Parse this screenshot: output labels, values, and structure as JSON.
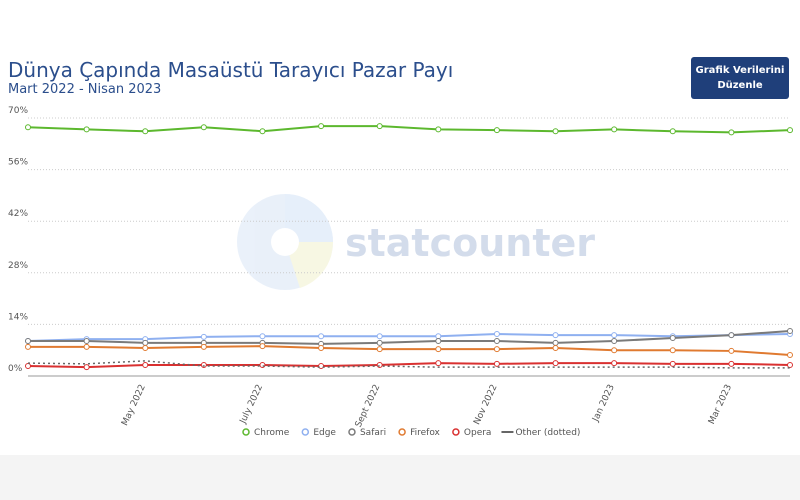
{
  "title": "Dünya Çapında Masaüstü Tarayıcı Pazar Payı",
  "subtitle": "Mart 2022 - Nisan 2023",
  "button_label": "Grafik Verilerini Düzenle",
  "watermark": "statcounter",
  "chart_data": {
    "type": "line",
    "categories": [
      null,
      null,
      "May 2022",
      null,
      "July 2022",
      null,
      "Sept 2022",
      null,
      "Nov 2022",
      null,
      "Jan 2023",
      null,
      "Mar 2023",
      null
    ],
    "ylim": [
      0,
      70
    ],
    "yticks": [
      {
        "value": 0,
        "label": "0%"
      },
      {
        "value": 14,
        "label": "14%"
      },
      {
        "value": 28,
        "label": "28%"
      },
      {
        "value": 42,
        "label": "42%"
      },
      {
        "value": 56,
        "label": "56%"
      },
      {
        "value": 70,
        "label": "70%"
      }
    ],
    "grid": true,
    "legend": "bottom",
    "series": [
      {
        "name": "Chrome",
        "color": "#5cb82e",
        "values": [
          67.5,
          66.9,
          66.4,
          67.5,
          66.4,
          67.8,
          67.8,
          66.9,
          66.7,
          66.4,
          66.9,
          66.4,
          66.1,
          66.7
        ]
      },
      {
        "name": "Edge",
        "color": "#8fb0f0",
        "values": [
          9.5,
          10,
          10,
          10.6,
          10.8,
          10.8,
          10.8,
          10.8,
          11.4,
          11.1,
          11.1,
          10.8,
          11.1,
          11.4
        ]
      },
      {
        "name": "Safari",
        "color": "#7a7a7a",
        "values": [
          9.5,
          9.5,
          9,
          9,
          9,
          8.7,
          9,
          9.5,
          9.5,
          9,
          9.5,
          10.3,
          11.1,
          12.2
        ]
      },
      {
        "name": "Firefox",
        "color": "#e07a30",
        "values": [
          7.9,
          7.9,
          7.6,
          7.9,
          8.1,
          7.6,
          7.3,
          7.3,
          7.3,
          7.6,
          7,
          7,
          6.8,
          5.7
        ]
      },
      {
        "name": "Opera",
        "color": "#d93030",
        "values": [
          2.7,
          2.4,
          3,
          3,
          3,
          2.7,
          3,
          3.5,
          3.3,
          3.5,
          3.5,
          3.3,
          3.3,
          3
        ]
      },
      {
        "name": "Other (dotted)",
        "color": "#666666",
        "dotted": true,
        "values": [
          3.5,
          3.3,
          4.1,
          2.7,
          2.7,
          2.4,
          2.7,
          2.4,
          2.4,
          2.4,
          2.4,
          2.4,
          2.2,
          2.2
        ]
      }
    ]
  }
}
